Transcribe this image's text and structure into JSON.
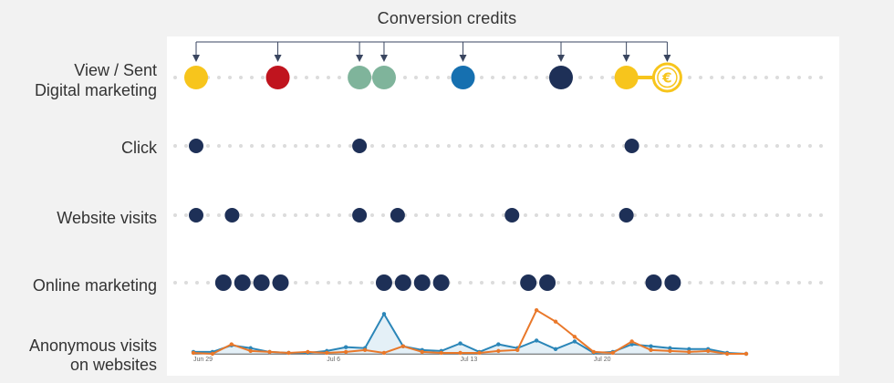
{
  "title": "Conversion credits",
  "rows": [
    {
      "id": "view-sent",
      "label_line1": "View / Sent",
      "label_line2": "Digital marketing"
    },
    {
      "id": "click",
      "label": "Click"
    },
    {
      "id": "website-visits",
      "label": "Website visits"
    },
    {
      "id": "online-marketing",
      "label": "Online marketing"
    },
    {
      "id": "anonymous-visits",
      "label_line1": "Anonymous visits",
      "label_line2": "on websites"
    }
  ],
  "colors": {
    "navy": "#1e3057",
    "yellow": "#f7c51c",
    "red": "#c0141e",
    "sage": "#7fb49b",
    "blue": "#1670b0",
    "dot_trail": "#dcdcdc",
    "arrow": "#3a4660",
    "line_blue": "#2b86b8",
    "line_orange": "#e9782a"
  },
  "conversion": {
    "currency_symbol": "€",
    "icon": "euro-coin-icon"
  },
  "touchpoints": {
    "view_sent": [
      {
        "pos": 0.0,
        "color": "yellow"
      },
      {
        "pos": 0.15,
        "color": "red"
      },
      {
        "pos": 0.3,
        "color": "sage"
      },
      {
        "pos": 0.345,
        "color": "sage"
      },
      {
        "pos": 0.49,
        "color": "blue"
      },
      {
        "pos": 0.67,
        "color": "navy"
      },
      {
        "pos": 0.79,
        "color": "yellow"
      }
    ],
    "click": [
      0.0,
      0.3,
      0.8
    ],
    "website_visits": [
      0.0,
      0.066,
      0.3,
      0.37,
      0.58,
      0.79
    ],
    "online_marketing": [
      0.05,
      0.085,
      0.12,
      0.155,
      0.345,
      0.38,
      0.415,
      0.45,
      0.61,
      0.645,
      0.84,
      0.875
    ]
  },
  "arrows": [
    0.0,
    0.15,
    0.3,
    0.345,
    0.49,
    0.67,
    0.79,
    0.865
  ],
  "chart_data": {
    "type": "line",
    "x_tick_labels": [
      "Jun 29",
      "Jul 6",
      "Jul 13",
      "Jul 20"
    ],
    "series": [
      {
        "name": "blue",
        "values": [
          2,
          2,
          9,
          6,
          2,
          1,
          1,
          3,
          7,
          6,
          42,
          8,
          4,
          3,
          11,
          2,
          10,
          6,
          14,
          5,
          13,
          1,
          2,
          10,
          8,
          6,
          5,
          5,
          1,
          0
        ]
      },
      {
        "name": "orange",
        "values": [
          1,
          0,
          10,
          3,
          2,
          1,
          2,
          1,
          2,
          4,
          1,
          8,
          2,
          1,
          1,
          1,
          3,
          4,
          46,
          34,
          18,
          2,
          1,
          13,
          4,
          3,
          2,
          3,
          0,
          0
        ]
      }
    ],
    "ylim": [
      0,
      50
    ]
  }
}
